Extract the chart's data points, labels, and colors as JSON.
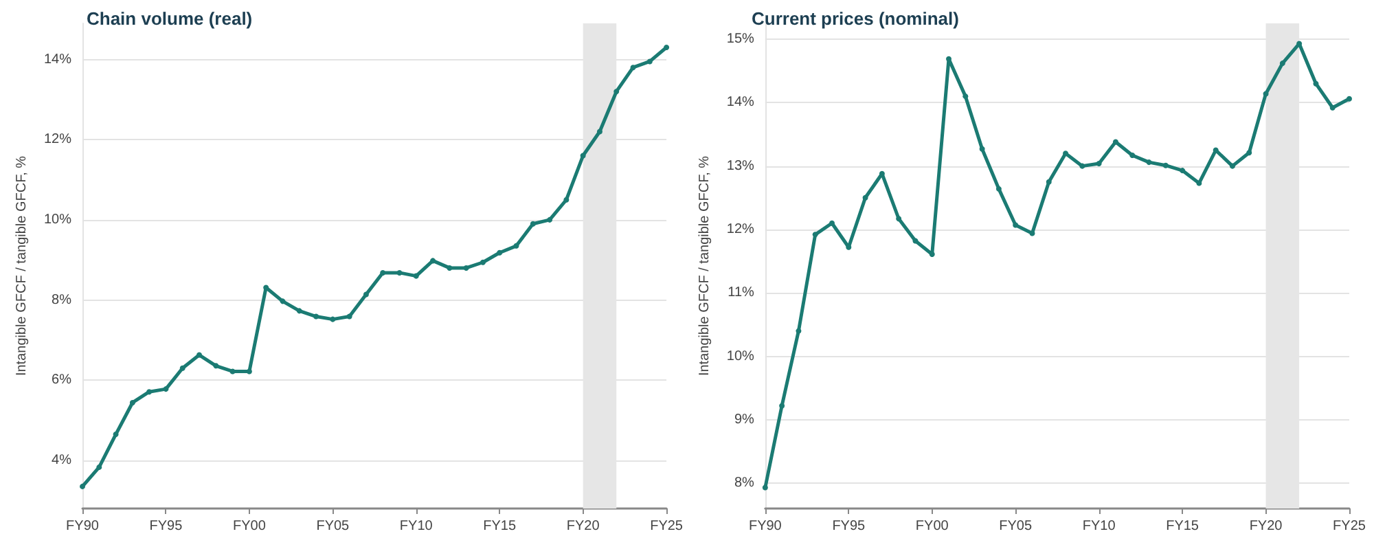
{
  "chart_data": [
    {
      "type": "line",
      "title": "Chain volume (real)",
      "ylabel": "Intangible GFCF / tangible GFCF, %",
      "categories": [
        "FY90",
        null,
        null,
        null,
        null,
        "FY95",
        null,
        null,
        null,
        null,
        "FY00",
        null,
        null,
        null,
        null,
        "FY05",
        null,
        null,
        null,
        null,
        "FY10",
        null,
        null,
        null,
        null,
        "FY15",
        null,
        null,
        null,
        null,
        "FY20",
        null,
        null,
        null,
        null,
        "FY25"
      ],
      "series": [
        {
          "color": "#1b7b73",
          "values": [
            3.35,
            3.83,
            4.65,
            5.44,
            5.71,
            5.78,
            6.3,
            6.63,
            6.36,
            6.22,
            6.22,
            8.31,
            7.97,
            7.73,
            7.59,
            7.52,
            7.59,
            8.14,
            8.68,
            8.68,
            8.6,
            8.98,
            8.8,
            8.8,
            8.94,
            9.18,
            9.35,
            9.9,
            10.0,
            10.5,
            11.6,
            12.2,
            13.2,
            13.8,
            13.95,
            14.3
          ]
        }
      ],
      "ylim": [
        2.8,
        14.9
      ],
      "yticks": [
        {
          "value": 4,
          "label": "4%"
        },
        {
          "value": 6,
          "label": "6%"
        },
        {
          "value": 8,
          "label": "8%"
        },
        {
          "value": 10,
          "label": "10%"
        },
        {
          "value": 12,
          "label": "12%"
        },
        {
          "value": 14,
          "label": "14%"
        }
      ],
      "grid": "y",
      "legend": false,
      "marker": "circle",
      "line_style": "solid"
    },
    {
      "type": "line",
      "title": "Current prices (nominal)",
      "ylabel": "Intangible GFCF / tangible GFCF, %",
      "categories": [
        "FY90",
        null,
        null,
        null,
        null,
        "FY95",
        null,
        null,
        null,
        null,
        "FY00",
        null,
        null,
        null,
        null,
        "FY05",
        null,
        null,
        null,
        null,
        "FY10",
        null,
        null,
        null,
        null,
        "FY15",
        null,
        null,
        null,
        null,
        "FY20",
        null,
        null,
        null,
        null,
        "FY25"
      ],
      "series": [
        {
          "color": "#1b7b73",
          "values": [
            7.93,
            9.22,
            10.4,
            11.92,
            12.1,
            11.72,
            12.5,
            12.88,
            12.17,
            11.82,
            11.61,
            14.69,
            14.1,
            13.27,
            12.64,
            12.07,
            11.94,
            12.75,
            13.2,
            13.0,
            13.04,
            13.38,
            13.17,
            13.06,
            13.01,
            12.93,
            12.73,
            13.25,
            13.0,
            13.21,
            14.14,
            14.62,
            14.93,
            14.3,
            13.92,
            14.06
          ]
        }
      ],
      "ylim": [
        7.6,
        15.25
      ],
      "yticks": [
        {
          "value": 8,
          "label": "8%"
        },
        {
          "value": 9,
          "label": "9%"
        },
        {
          "value": 10,
          "label": "10%"
        },
        {
          "value": 11,
          "label": "11%"
        },
        {
          "value": 12,
          "label": "12%"
        },
        {
          "value": 13,
          "label": "13%"
        },
        {
          "value": 14,
          "label": "14%"
        },
        {
          "value": 15,
          "label": "15%"
        }
      ],
      "grid": "y",
      "legend": false,
      "marker": "circle",
      "line_style": "solid"
    }
  ]
}
